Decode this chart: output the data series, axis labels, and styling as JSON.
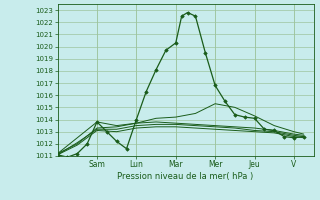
{
  "background_color": "#c8ecec",
  "grid_color": "#9ec49e",
  "line_color": "#1a5c1a",
  "marker_color": "#1a5c1a",
  "xlabel": "Pression niveau de la mer( hPa )",
  "ylim": [
    1011,
    1023.5
  ],
  "yticks": [
    1011,
    1012,
    1013,
    1014,
    1015,
    1016,
    1017,
    1018,
    1019,
    1020,
    1021,
    1022,
    1023
  ],
  "x_tick_labels": [
    "Sam",
    "Lun",
    "Mar",
    "Mer",
    "Jeu",
    "V"
  ],
  "x_tick_pos": [
    2.0,
    4.0,
    6.0,
    8.0,
    10.0,
    12.0
  ],
  "xlim": [
    0,
    13.0
  ],
  "series_main": {
    "x": [
      0.0,
      0.5,
      1.0,
      1.5,
      2.0,
      2.5,
      3.0,
      3.5,
      4.0,
      4.5,
      5.0,
      5.5,
      6.0,
      6.3,
      6.6,
      7.0,
      7.5,
      8.0,
      8.5,
      9.0,
      9.5,
      10.0,
      10.5,
      11.0,
      11.5,
      12.0,
      12.5
    ],
    "y": [
      1011.1,
      1010.9,
      1011.2,
      1012.0,
      1013.8,
      1013.0,
      1012.2,
      1011.6,
      1014.0,
      1016.3,
      1018.1,
      1019.7,
      1020.3,
      1022.5,
      1022.8,
      1022.5,
      1019.5,
      1016.8,
      1015.5,
      1014.4,
      1014.2,
      1014.1,
      1013.2,
      1013.1,
      1012.6,
      1012.5,
      1012.6
    ]
  },
  "series_smooth": [
    {
      "x": [
        0.0,
        1.0,
        2.0,
        3.0,
        4.0,
        5.0,
        6.0,
        7.0,
        8.0,
        9.0,
        10.0,
        11.0,
        12.0,
        12.5
      ],
      "y": [
        1011.2,
        1012.5,
        1013.8,
        1013.5,
        1013.7,
        1013.8,
        1013.7,
        1013.6,
        1013.5,
        1013.4,
        1013.3,
        1013.1,
        1012.8,
        1012.7
      ]
    },
    {
      "x": [
        0.0,
        1.0,
        2.0,
        3.0,
        4.0,
        5.0,
        6.0,
        7.0,
        8.0,
        9.0,
        10.0,
        11.0,
        12.0,
        12.5
      ],
      "y": [
        1011.2,
        1012.0,
        1013.3,
        1013.4,
        1013.7,
        1014.1,
        1014.2,
        1014.5,
        1015.3,
        1015.0,
        1014.3,
        1013.5,
        1013.0,
        1012.8
      ]
    },
    {
      "x": [
        0.0,
        1.0,
        2.0,
        3.0,
        4.0,
        5.0,
        6.0,
        7.0,
        8.0,
        9.0,
        10.0,
        11.0,
        12.0,
        12.5
      ],
      "y": [
        1011.1,
        1012.1,
        1013.2,
        1013.2,
        1013.5,
        1013.6,
        1013.6,
        1013.5,
        1013.4,
        1013.3,
        1013.1,
        1013.0,
        1012.7,
        1012.6
      ]
    },
    {
      "x": [
        0.0,
        1.0,
        2.0,
        3.0,
        4.0,
        5.0,
        6.0,
        7.0,
        8.0,
        9.0,
        10.0,
        11.0,
        12.0,
        12.5
      ],
      "y": [
        1011.1,
        1011.9,
        1013.1,
        1013.0,
        1013.3,
        1013.4,
        1013.4,
        1013.3,
        1013.2,
        1013.1,
        1013.0,
        1012.9,
        1012.6,
        1012.5
      ]
    }
  ]
}
